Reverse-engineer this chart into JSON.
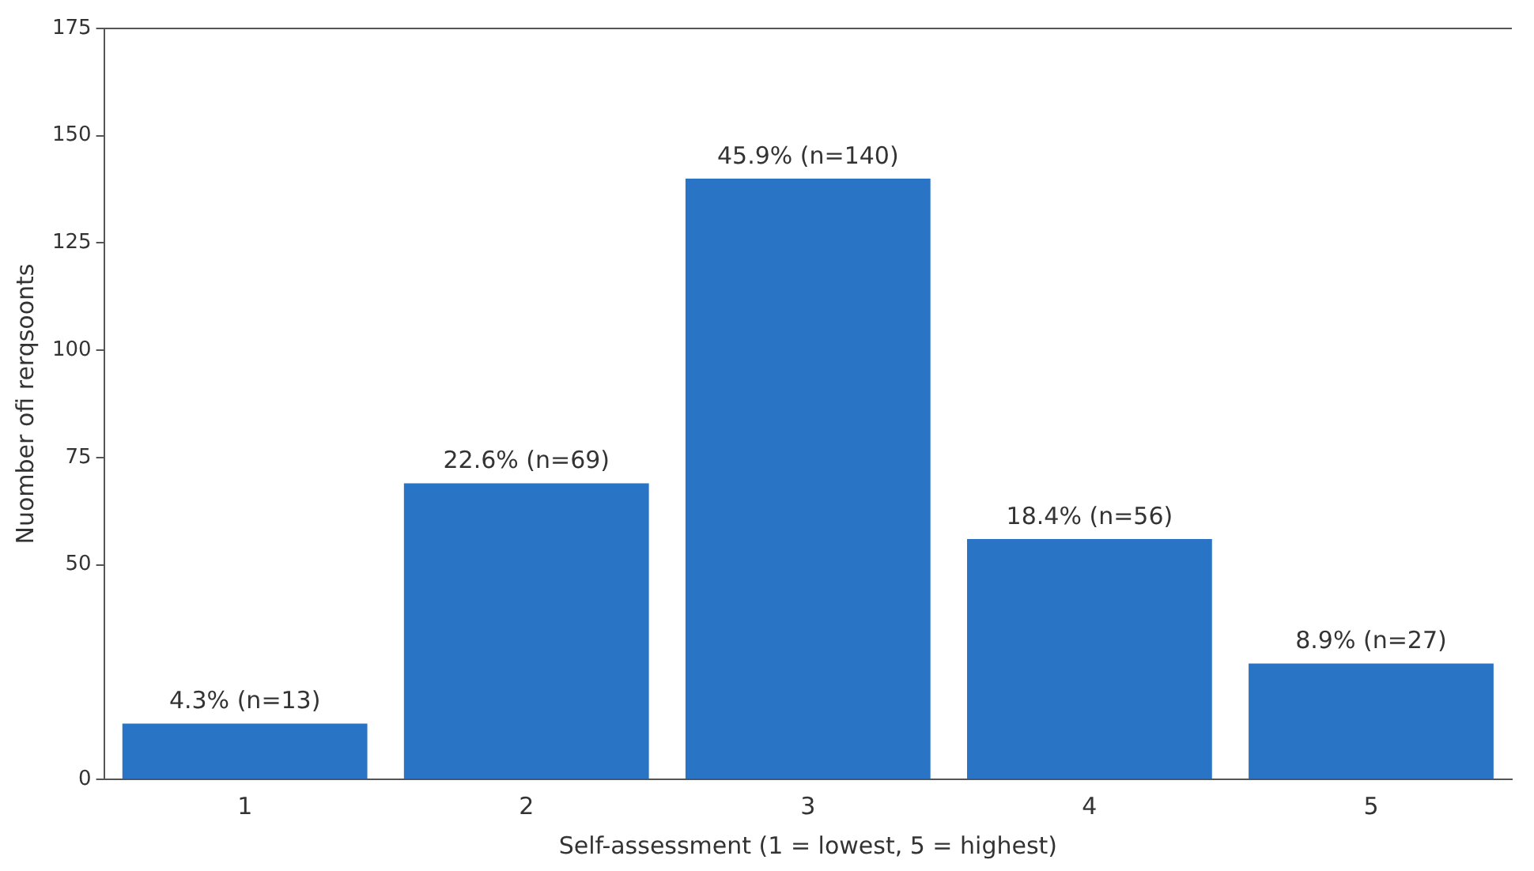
{
  "chart_data": {
    "type": "bar",
    "xlabel": "Self-assessment (1 = lowest, 5 = highest)",
    "ylabel": "Nuomber ofi rerqsoonts",
    "categories": [
      "1",
      "2",
      "3",
      "4",
      "5"
    ],
    "values": [
      13,
      69,
      140,
      56,
      27
    ],
    "value_labels": [
      "4.3% (n=13)",
      "22.6% (n=69)",
      "45.9% (n=140)",
      "18.4% (n=56)",
      "8.9% (n=27)"
    ],
    "color": "#2a74c5",
    "ylim": [
      0,
      175
    ],
    "yticks": [
      0,
      50,
      75,
      100,
      125,
      150,
      175
    ],
    "grid": false,
    "legend": false
  }
}
